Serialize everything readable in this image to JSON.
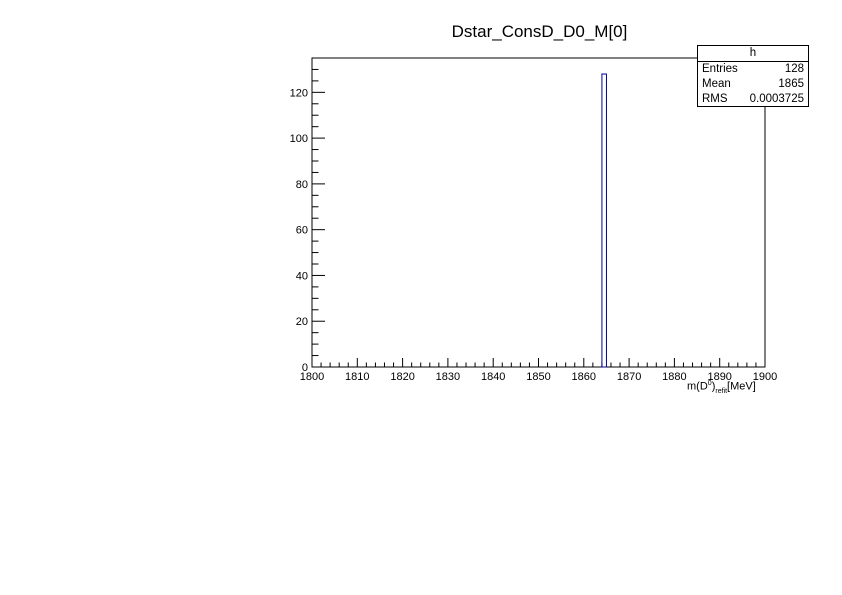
{
  "canvas": {
    "background": "#ffffff"
  },
  "chart_data": {
    "type": "bar",
    "title": "Dstar_ConsD_D0_M[0]",
    "xlabel": {
      "prefix": "m(D",
      "sup": "0",
      "suffix": ")",
      "sub": "refit",
      "unit": "[MeV]"
    },
    "ylabel": "",
    "xlim": [
      1800,
      1900
    ],
    "ylim": [
      0,
      135
    ],
    "x_major_ticks": [
      1800,
      1810,
      1820,
      1830,
      1840,
      1850,
      1860,
      1870,
      1880,
      1890,
      1900
    ],
    "y_major_ticks": [
      0,
      20,
      40,
      60,
      80,
      100,
      120
    ],
    "bins": [
      {
        "low": 1864,
        "high": 1865,
        "count": 128
      }
    ],
    "line_color": "#000099",
    "grid": false,
    "stats": {
      "name": "h",
      "rows": [
        {
          "label": "Entries",
          "value": "128"
        },
        {
          "label": "Mean",
          "value": "1865"
        },
        {
          "label": "RMS",
          "value": "0.0003725"
        }
      ]
    }
  }
}
